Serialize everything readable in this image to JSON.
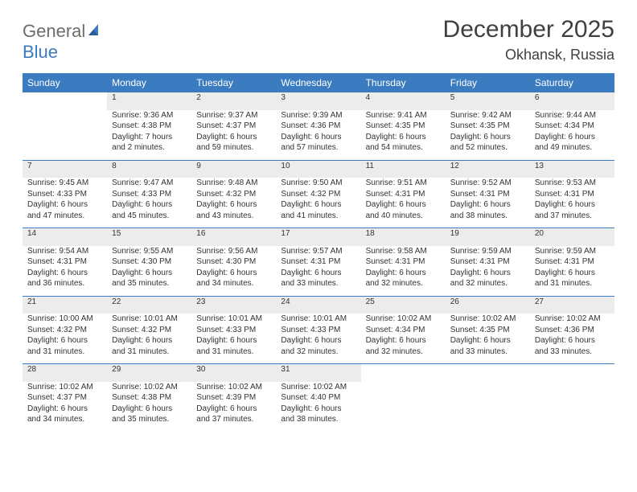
{
  "brand": {
    "part1": "General",
    "part2": "Blue"
  },
  "title": "December 2025",
  "location": "Okhansk, Russia",
  "colors": {
    "header_bg": "#3b7bbf",
    "header_text": "#ffffff",
    "daynum_bg": "#ececec",
    "row_border": "#3b7bbf",
    "logo_gray": "#6c6c6c",
    "logo_blue": "#3b7bbf",
    "text": "#333333",
    "background": "#ffffff"
  },
  "day_names": [
    "Sunday",
    "Monday",
    "Tuesday",
    "Wednesday",
    "Thursday",
    "Friday",
    "Saturday"
  ],
  "weeks": [
    {
      "nums": [
        "",
        "1",
        "2",
        "3",
        "4",
        "5",
        "6"
      ],
      "cells": [
        {
          "sunrise": "",
          "sunset": "",
          "daylight": ""
        },
        {
          "sunrise": "Sunrise: 9:36 AM",
          "sunset": "Sunset: 4:38 PM",
          "daylight": "Daylight: 7 hours and 2 minutes."
        },
        {
          "sunrise": "Sunrise: 9:37 AM",
          "sunset": "Sunset: 4:37 PM",
          "daylight": "Daylight: 6 hours and 59 minutes."
        },
        {
          "sunrise": "Sunrise: 9:39 AM",
          "sunset": "Sunset: 4:36 PM",
          "daylight": "Daylight: 6 hours and 57 minutes."
        },
        {
          "sunrise": "Sunrise: 9:41 AM",
          "sunset": "Sunset: 4:35 PM",
          "daylight": "Daylight: 6 hours and 54 minutes."
        },
        {
          "sunrise": "Sunrise: 9:42 AM",
          "sunset": "Sunset: 4:35 PM",
          "daylight": "Daylight: 6 hours and 52 minutes."
        },
        {
          "sunrise": "Sunrise: 9:44 AM",
          "sunset": "Sunset: 4:34 PM",
          "daylight": "Daylight: 6 hours and 49 minutes."
        }
      ]
    },
    {
      "nums": [
        "7",
        "8",
        "9",
        "10",
        "11",
        "12",
        "13"
      ],
      "cells": [
        {
          "sunrise": "Sunrise: 9:45 AM",
          "sunset": "Sunset: 4:33 PM",
          "daylight": "Daylight: 6 hours and 47 minutes."
        },
        {
          "sunrise": "Sunrise: 9:47 AM",
          "sunset": "Sunset: 4:33 PM",
          "daylight": "Daylight: 6 hours and 45 minutes."
        },
        {
          "sunrise": "Sunrise: 9:48 AM",
          "sunset": "Sunset: 4:32 PM",
          "daylight": "Daylight: 6 hours and 43 minutes."
        },
        {
          "sunrise": "Sunrise: 9:50 AM",
          "sunset": "Sunset: 4:32 PM",
          "daylight": "Daylight: 6 hours and 41 minutes."
        },
        {
          "sunrise": "Sunrise: 9:51 AM",
          "sunset": "Sunset: 4:31 PM",
          "daylight": "Daylight: 6 hours and 40 minutes."
        },
        {
          "sunrise": "Sunrise: 9:52 AM",
          "sunset": "Sunset: 4:31 PM",
          "daylight": "Daylight: 6 hours and 38 minutes."
        },
        {
          "sunrise": "Sunrise: 9:53 AM",
          "sunset": "Sunset: 4:31 PM",
          "daylight": "Daylight: 6 hours and 37 minutes."
        }
      ]
    },
    {
      "nums": [
        "14",
        "15",
        "16",
        "17",
        "18",
        "19",
        "20"
      ],
      "cells": [
        {
          "sunrise": "Sunrise: 9:54 AM",
          "sunset": "Sunset: 4:31 PM",
          "daylight": "Daylight: 6 hours and 36 minutes."
        },
        {
          "sunrise": "Sunrise: 9:55 AM",
          "sunset": "Sunset: 4:30 PM",
          "daylight": "Daylight: 6 hours and 35 minutes."
        },
        {
          "sunrise": "Sunrise: 9:56 AM",
          "sunset": "Sunset: 4:30 PM",
          "daylight": "Daylight: 6 hours and 34 minutes."
        },
        {
          "sunrise": "Sunrise: 9:57 AM",
          "sunset": "Sunset: 4:31 PM",
          "daylight": "Daylight: 6 hours and 33 minutes."
        },
        {
          "sunrise": "Sunrise: 9:58 AM",
          "sunset": "Sunset: 4:31 PM",
          "daylight": "Daylight: 6 hours and 32 minutes."
        },
        {
          "sunrise": "Sunrise: 9:59 AM",
          "sunset": "Sunset: 4:31 PM",
          "daylight": "Daylight: 6 hours and 32 minutes."
        },
        {
          "sunrise": "Sunrise: 9:59 AM",
          "sunset": "Sunset: 4:31 PM",
          "daylight": "Daylight: 6 hours and 31 minutes."
        }
      ]
    },
    {
      "nums": [
        "21",
        "22",
        "23",
        "24",
        "25",
        "26",
        "27"
      ],
      "cells": [
        {
          "sunrise": "Sunrise: 10:00 AM",
          "sunset": "Sunset: 4:32 PM",
          "daylight": "Daylight: 6 hours and 31 minutes."
        },
        {
          "sunrise": "Sunrise: 10:01 AM",
          "sunset": "Sunset: 4:32 PM",
          "daylight": "Daylight: 6 hours and 31 minutes."
        },
        {
          "sunrise": "Sunrise: 10:01 AM",
          "sunset": "Sunset: 4:33 PM",
          "daylight": "Daylight: 6 hours and 31 minutes."
        },
        {
          "sunrise": "Sunrise: 10:01 AM",
          "sunset": "Sunset: 4:33 PM",
          "daylight": "Daylight: 6 hours and 32 minutes."
        },
        {
          "sunrise": "Sunrise: 10:02 AM",
          "sunset": "Sunset: 4:34 PM",
          "daylight": "Daylight: 6 hours and 32 minutes."
        },
        {
          "sunrise": "Sunrise: 10:02 AM",
          "sunset": "Sunset: 4:35 PM",
          "daylight": "Daylight: 6 hours and 33 minutes."
        },
        {
          "sunrise": "Sunrise: 10:02 AM",
          "sunset": "Sunset: 4:36 PM",
          "daylight": "Daylight: 6 hours and 33 minutes."
        }
      ]
    },
    {
      "nums": [
        "28",
        "29",
        "30",
        "31",
        "",
        "",
        ""
      ],
      "cells": [
        {
          "sunrise": "Sunrise: 10:02 AM",
          "sunset": "Sunset: 4:37 PM",
          "daylight": "Daylight: 6 hours and 34 minutes."
        },
        {
          "sunrise": "Sunrise: 10:02 AM",
          "sunset": "Sunset: 4:38 PM",
          "daylight": "Daylight: 6 hours and 35 minutes."
        },
        {
          "sunrise": "Sunrise: 10:02 AM",
          "sunset": "Sunset: 4:39 PM",
          "daylight": "Daylight: 6 hours and 37 minutes."
        },
        {
          "sunrise": "Sunrise: 10:02 AM",
          "sunset": "Sunset: 4:40 PM",
          "daylight": "Daylight: 6 hours and 38 minutes."
        },
        {
          "sunrise": "",
          "sunset": "",
          "daylight": ""
        },
        {
          "sunrise": "",
          "sunset": "",
          "daylight": ""
        },
        {
          "sunrise": "",
          "sunset": "",
          "daylight": ""
        }
      ]
    }
  ]
}
